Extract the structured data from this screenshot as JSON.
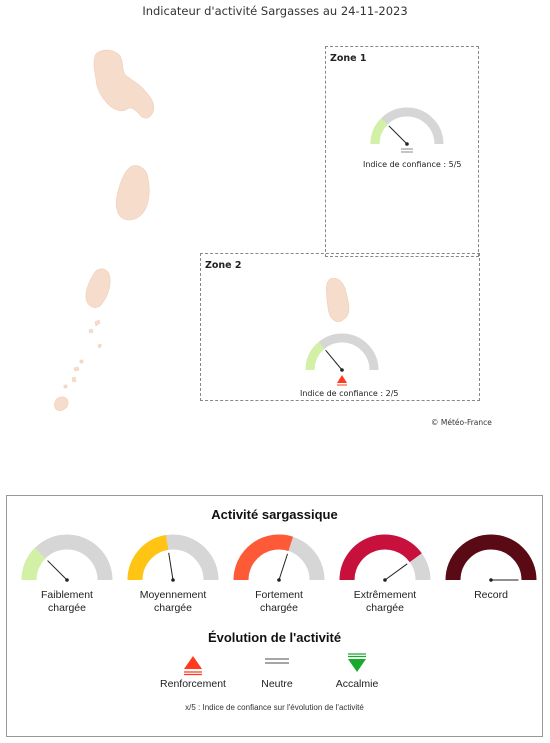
{
  "title": "Indicateur d'activité Sargasses au 24-11-2023",
  "copyright": "© Météo-France",
  "colors": {
    "land": "#f6dccb",
    "gauge_bg": "#d6d6d6",
    "faible": "#d2f0a6",
    "moyen": "#ffc414",
    "fort": "#ff5a37",
    "extreme": "#c8103c",
    "record": "#5a0a14",
    "renforcement": "#ff3b1f",
    "accalmie": "#1aa82e"
  },
  "zones": [
    {
      "label": "Zone 1",
      "level": "faible",
      "level_fraction": 0.25,
      "trend": "neutre",
      "confidence": "Indice de confiance : 5/5"
    },
    {
      "label": "Zone 2",
      "level": "faible",
      "level_fraction": 0.28,
      "trend": "renforcement",
      "confidence": "Indice de confiance : 2/5"
    }
  ],
  "legend": {
    "activity_title": "Activité sargassique",
    "gauges": [
      {
        "line1": "Faiblement",
        "line2": "chargée",
        "color": "faible",
        "fraction": 0.25
      },
      {
        "line1": "Moyennement",
        "line2": "chargée",
        "color": "moyen",
        "fraction": 0.45
      },
      {
        "line1": "Fortement",
        "line2": "chargée",
        "color": "fort",
        "fraction": 0.6
      },
      {
        "line1": "Extrêmement",
        "line2": "chargée",
        "color": "extreme",
        "fraction": 0.8
      },
      {
        "line1": "Record",
        "line2": "",
        "color": "record",
        "fraction": 1.0
      }
    ],
    "evolution_title": "Évolution de l'activité",
    "evolution": [
      {
        "label": "Renforcement",
        "icon": "triangle-up-icon"
      },
      {
        "label": "Neutre",
        "icon": "double-line-icon"
      },
      {
        "label": "Accalmie",
        "icon": "triangle-down-icon"
      }
    ],
    "note": "x/5 : Indice de confiance sur l'évolution de l'activité"
  }
}
